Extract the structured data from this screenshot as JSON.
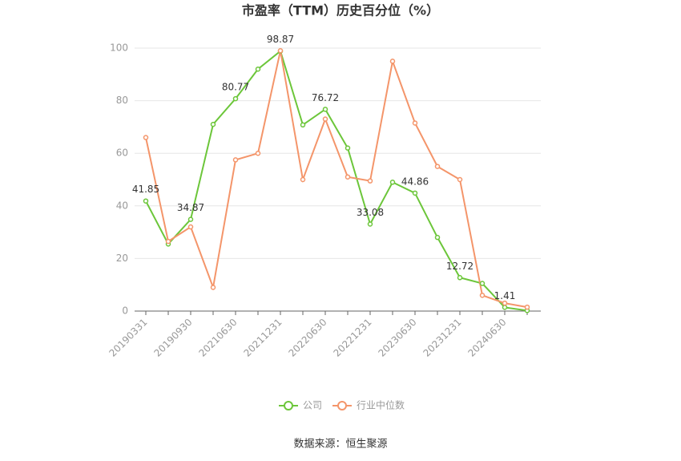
{
  "chart_data": {
    "type": "line",
    "title": "市盈率（TTM）历史百分位（%）",
    "source": "数据来源：恒生聚源",
    "categories": [
      "20190331",
      null,
      "20190930",
      null,
      "20210630",
      null,
      "20211231",
      null,
      "20220630",
      null,
      "20221231",
      null,
      "20230630",
      null,
      "20231231",
      null,
      "20240630",
      null
    ],
    "series": [
      {
        "name": "公司",
        "color": "#6cc63a",
        "values": [
          41.85,
          25.5,
          34.87,
          71,
          80.77,
          92,
          98.87,
          70.8,
          76.72,
          62,
          33.08,
          49,
          44.86,
          28,
          12.72,
          10.5,
          1.41,
          0.2
        ]
      },
      {
        "name": "行业中位数",
        "color": "#f4956a",
        "values": [
          66,
          26.5,
          32,
          9,
          57.5,
          60,
          99,
          50,
          73,
          51,
          49.5,
          95,
          71.5,
          55,
          50,
          6,
          3,
          1.5
        ]
      }
    ],
    "ylim": [
      0,
      100
    ],
    "yticks": [
      0,
      20,
      40,
      60,
      80,
      100
    ],
    "grid": true
  }
}
